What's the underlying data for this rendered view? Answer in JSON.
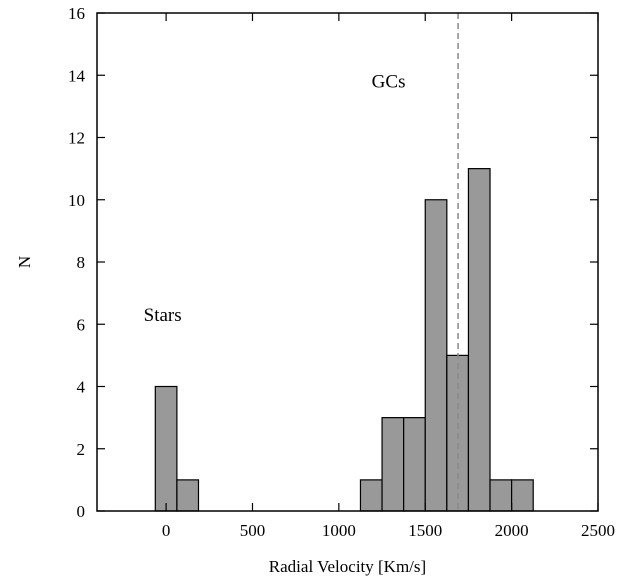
{
  "chart_data": {
    "type": "bar",
    "xlabel": "Radial Velocity [Km/s]",
    "ylabel": "N",
    "xlim": [
      -400,
      2500
    ],
    "ylim": [
      0,
      16
    ],
    "xticks": [
      0,
      500,
      1000,
      1500,
      2000,
      2500
    ],
    "yticks": [
      0,
      2,
      4,
      6,
      8,
      10,
      12,
      14,
      16
    ],
    "bin_width": 125,
    "bins": [
      {
        "x0": -62.5,
        "x1": 62.5,
        "value": 4
      },
      {
        "x0": 62.5,
        "x1": 187.5,
        "value": 1
      },
      {
        "x0": 1125,
        "x1": 1250,
        "value": 1
      },
      {
        "x0": 1250,
        "x1": 1375,
        "value": 3
      },
      {
        "x0": 1375,
        "x1": 1500,
        "value": 3
      },
      {
        "x0": 1500,
        "x1": 1625,
        "value": 10
      },
      {
        "x0": 1625,
        "x1": 1750,
        "value": 5
      },
      {
        "x0": 1750,
        "x1": 1875,
        "value": 11
      },
      {
        "x0": 1875,
        "x1": 2000,
        "value": 1
      },
      {
        "x0": 2000,
        "x1": 2125,
        "value": 1
      }
    ],
    "bar_color": "#999999",
    "reference_line": {
      "x": 1690,
      "style": "dashed",
      "color": "#888888"
    },
    "annotations": [
      {
        "text": "Stars",
        "x": -130,
        "y": 6.1
      },
      {
        "text": "GCs",
        "x": 1190,
        "y": 13.6
      }
    ],
    "grid": false
  }
}
